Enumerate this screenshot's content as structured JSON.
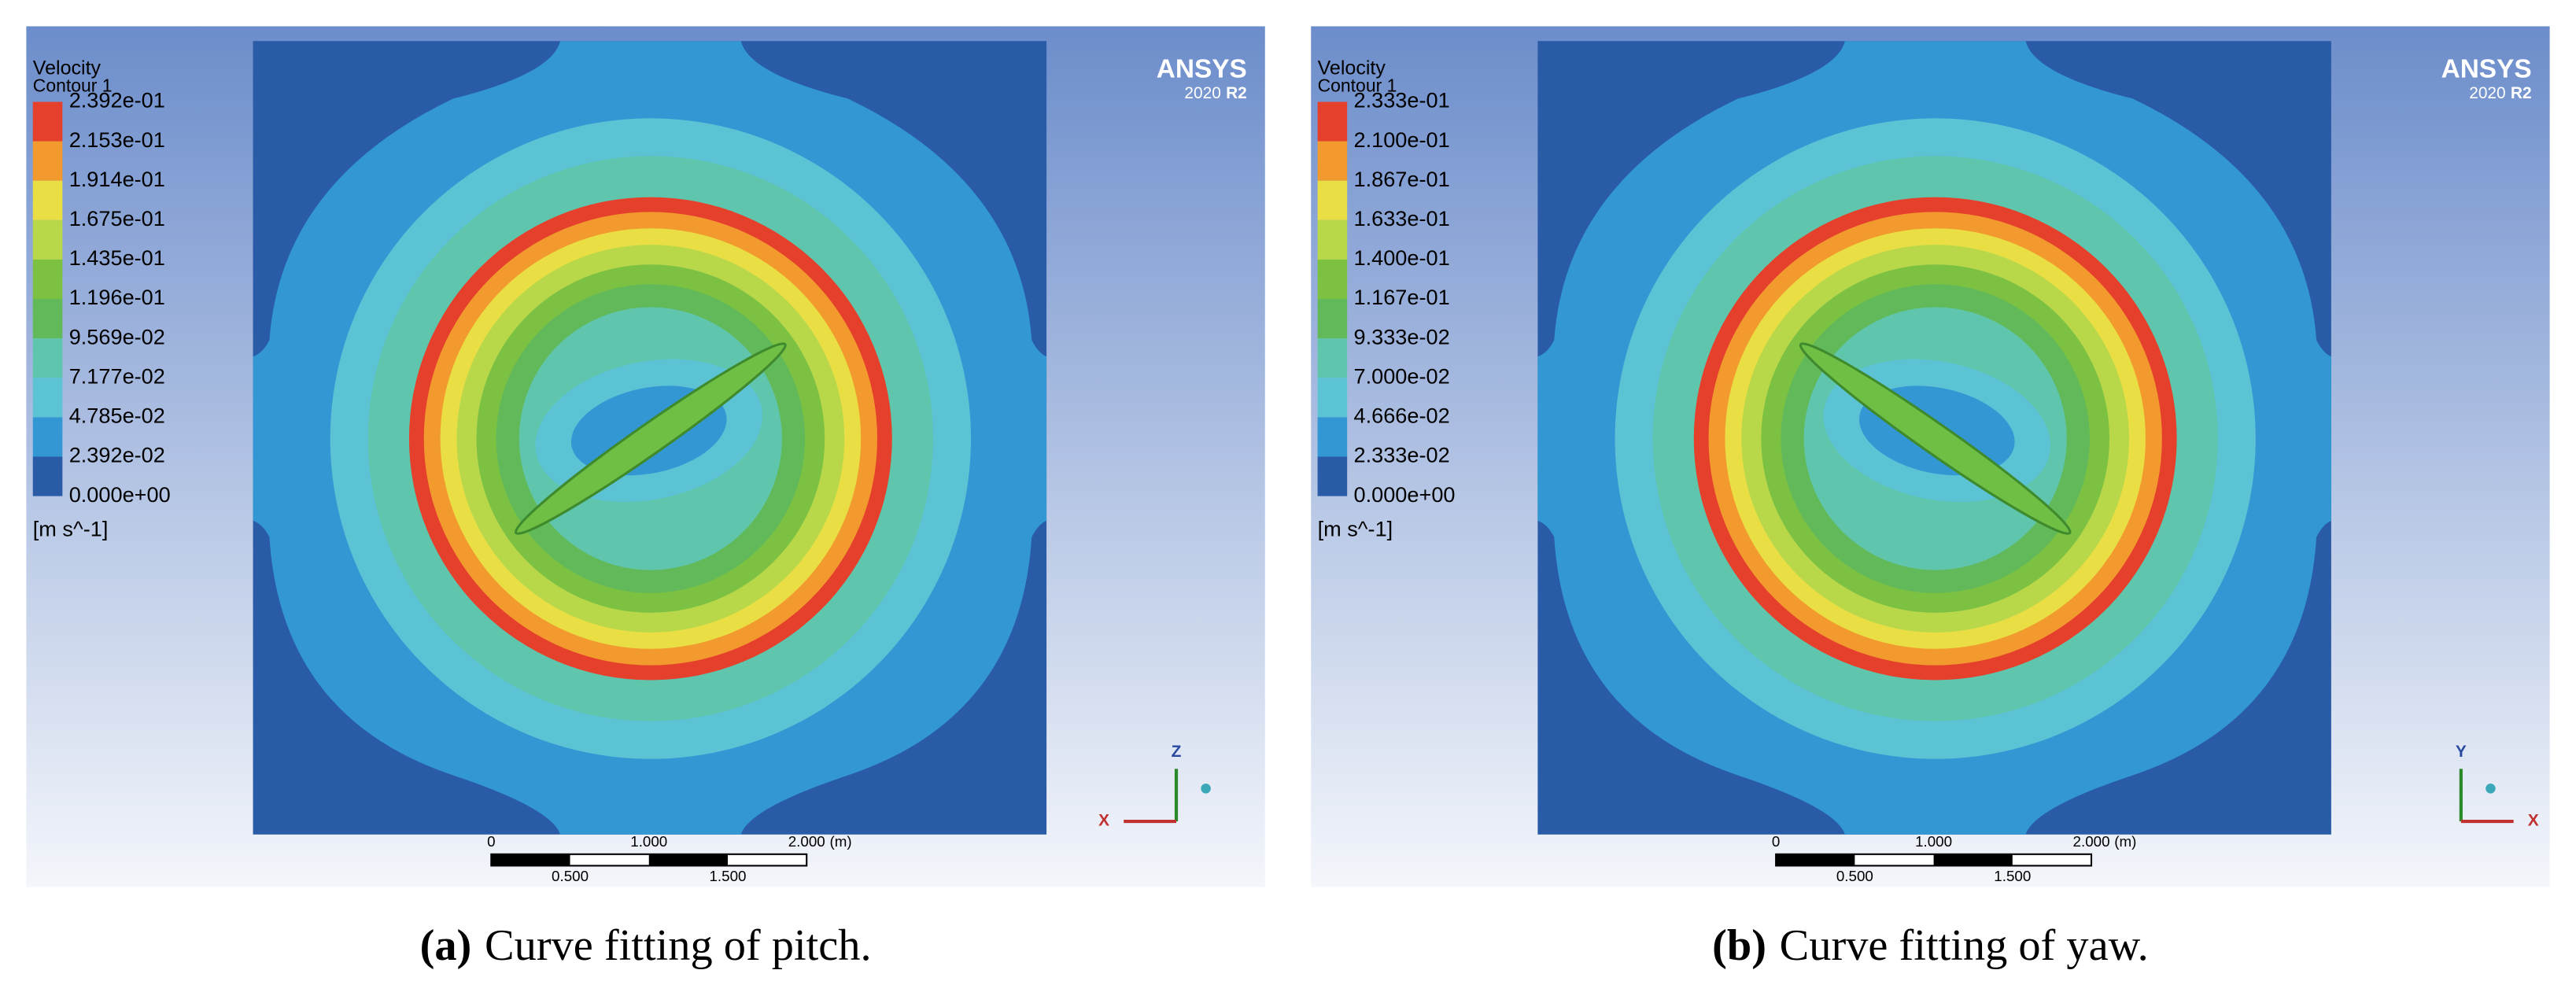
{
  "panels": [
    {
      "label": "(a)",
      "caption": "Curve fitting of pitch.",
      "legend": {
        "title": "Velocity",
        "subtitle": "Contour 1",
        "labels": [
          "2.392e-01",
          "2.153e-01",
          "1.914e-01",
          "1.675e-01",
          "1.435e-01",
          "1.196e-01",
          "9.569e-02",
          "7.177e-02",
          "4.785e-02",
          "2.392e-02",
          "0.000e+00"
        ],
        "unit": "[m s^-1]",
        "colors": [
          "#e5402c",
          "#f29a2e",
          "#e9df45",
          "#b8d84a",
          "#7dc143",
          "#62b95a",
          "#5fc6ad",
          "#5cc3d5",
          "#3297d3",
          "#2a5ba7"
        ]
      },
      "logo": "ANSYS",
      "version": "2020",
      "release": "R2",
      "scale_top": [
        "0",
        "1.000",
        "2.000"
      ],
      "scale_unit": "(m)",
      "scale_bottom": [
        "0.500",
        "1.500"
      ],
      "axes": {
        "vertical": "Z",
        "horizontal": "X"
      }
    },
    {
      "label": "(b)",
      "caption": "Curve fitting of yaw.",
      "legend": {
        "title": "Velocity",
        "subtitle": "Contour 1",
        "labels": [
          "2.333e-01",
          "2.100e-01",
          "1.867e-01",
          "1.633e-01",
          "1.400e-01",
          "1.167e-01",
          "9.333e-02",
          "7.000e-02",
          "4.666e-02",
          "2.333e-02",
          "0.000e+00"
        ],
        "unit": "[m s^-1]",
        "colors": [
          "#e5402c",
          "#f29a2e",
          "#e9df45",
          "#b8d84a",
          "#7dc143",
          "#62b95a",
          "#5fc6ad",
          "#5cc3d5",
          "#3297d3",
          "#2a5ba7"
        ]
      },
      "logo": "ANSYS",
      "version": "2020",
      "release": "R2",
      "scale_top": [
        "0",
        "1.000",
        "2.000"
      ],
      "scale_unit": "(m)",
      "scale_bottom": [
        "0.500",
        "1.500"
      ],
      "axes": {
        "vertical": "Y",
        "horizontal": "X"
      }
    }
  ]
}
